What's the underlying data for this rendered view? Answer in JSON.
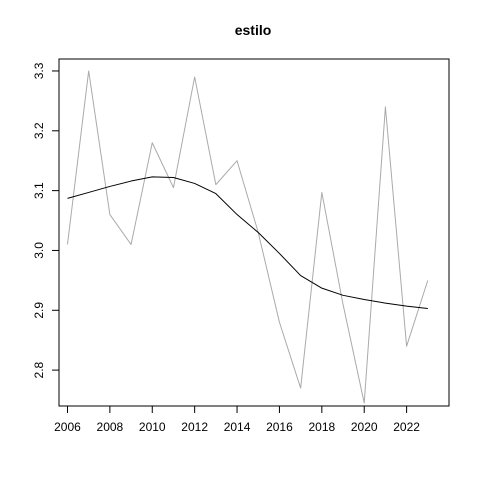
{
  "chart_data": {
    "type": "line",
    "title": "estilo",
    "xlabel": "",
    "ylabel": "",
    "x": [
      2006,
      2007,
      2008,
      2009,
      2010,
      2011,
      2012,
      2013,
      2014,
      2015,
      2016,
      2017,
      2018,
      2019,
      2020,
      2021,
      2022,
      2023
    ],
    "xlim": [
      2005.6,
      2024.0
    ],
    "ylim": [
      2.74,
      3.32
    ],
    "x_ticks": [
      2006,
      2008,
      2010,
      2012,
      2014,
      2016,
      2018,
      2020,
      2022
    ],
    "x_tick_labels": [
      "2006",
      "2008",
      "2010",
      "2012",
      "2014",
      "2016",
      "2018",
      "2020",
      "2022"
    ],
    "y_ticks": [
      2.8,
      2.9,
      3.0,
      3.1,
      3.2,
      3.3
    ],
    "y_tick_labels": [
      "2.8",
      "2.9",
      "3.0",
      "3.1",
      "3.2",
      "3.3"
    ],
    "grid": false,
    "series": [
      {
        "values": [
          3.01,
          3.3,
          3.06,
          3.01,
          3.18,
          3.105,
          3.29,
          3.11,
          3.15,
          3.03,
          2.88,
          2.77,
          3.097,
          2.91,
          2.745,
          3.24,
          2.84,
          2.95
        ],
        "color": "#aaaaaa"
      },
      {
        "values": [
          3.087,
          3.097,
          3.107,
          3.116,
          3.123,
          3.122,
          3.112,
          3.095,
          3.06,
          3.03,
          2.995,
          2.958,
          2.937,
          2.925,
          2.918,
          2.912,
          2.907,
          2.903
        ],
        "color": "#000000"
      }
    ]
  }
}
